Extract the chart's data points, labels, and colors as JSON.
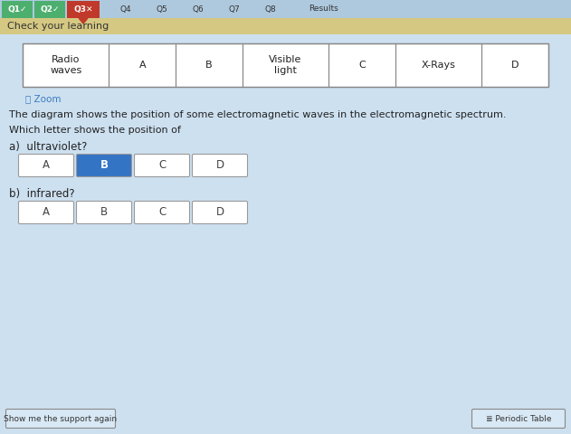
{
  "bg_color": "#cde0f0",
  "header_bg": "#aec9de",
  "header_items": [
    "Q1✓",
    "Q2✓",
    "Q3✕",
    "Q4",
    "Q5",
    "Q6",
    "Q7",
    "Q8",
    "Results"
  ],
  "header_colors": [
    "#4caf6e",
    "#4caf6e",
    "#c0392b",
    "#aec9de",
    "#aec9de",
    "#aec9de",
    "#aec9de",
    "#aec9de",
    "#aec9de"
  ],
  "subheader_text": "Check your learning",
  "subheader_bg": "#d4c882",
  "spectrum_cells": [
    "Radio\nwaves",
    "A",
    "B",
    "Visible\nlight",
    "C",
    "X-Rays",
    "D"
  ],
  "zoom_text": "Zoom",
  "main_text_1": "The diagram shows the position of some electromagnetic waves in the electromagnetic spectrum.",
  "main_text_2": "Which letter shows the position of",
  "question_a": "a)  ultraviolet?",
  "question_b": "b)  infrared?",
  "buttons_a": [
    "A",
    "B",
    "C",
    "D"
  ],
  "buttons_b": [
    "A",
    "B",
    "C",
    "D"
  ],
  "selected_a": 1,
  "selected_b": -1,
  "selected_color": "#3474c4",
  "button_bg": "#ffffff",
  "bottom_left_btn": "Show me the support again",
  "bottom_right_btn": "Periodic Table",
  "text_color": "#222222"
}
